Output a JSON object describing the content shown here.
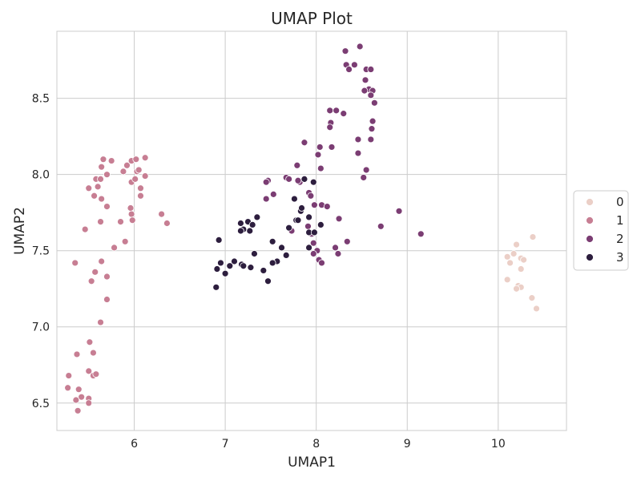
{
  "chart_data": {
    "type": "scatter",
    "title": "UMAP Plot",
    "xlabel": "UMAP1",
    "ylabel": "UMAP2",
    "xlim": [
      5.15,
      10.75
    ],
    "ylim": [
      6.32,
      8.94
    ],
    "xticks": [
      6,
      7,
      8,
      9,
      10
    ],
    "yticks": [
      6.5,
      7.0,
      7.5,
      8.0,
      8.5
    ],
    "grid": true,
    "legend_position": "right",
    "series": [
      {
        "name": "0",
        "color": "#ebcfc7",
        "points": [
          [
            10.38,
            7.59
          ],
          [
            10.2,
            7.54
          ],
          [
            10.1,
            7.46
          ],
          [
            10.17,
            7.48
          ],
          [
            10.25,
            7.45
          ],
          [
            10.28,
            7.44
          ],
          [
            10.13,
            7.42
          ],
          [
            10.25,
            7.38
          ],
          [
            10.1,
            7.31
          ],
          [
            10.22,
            7.27
          ],
          [
            10.25,
            7.26
          ],
          [
            10.2,
            7.25
          ],
          [
            10.37,
            7.19
          ],
          [
            10.42,
            7.12
          ]
        ]
      },
      {
        "name": "1",
        "color": "#c77e93",
        "points": [
          [
            5.66,
            8.1
          ],
          [
            5.75,
            8.09
          ],
          [
            5.97,
            8.09
          ],
          [
            6.02,
            8.1
          ],
          [
            6.12,
            8.11
          ],
          [
            5.58,
            7.97
          ],
          [
            5.63,
            7.97
          ],
          [
            5.7,
            8.0
          ],
          [
            5.88,
            8.02
          ],
          [
            5.92,
            8.06
          ],
          [
            6.03,
            8.02
          ],
          [
            6.05,
            8.03
          ],
          [
            5.64,
            8.05
          ],
          [
            5.97,
            7.95
          ],
          [
            6.01,
            7.97
          ],
          [
            6.12,
            7.99
          ],
          [
            5.5,
            7.91
          ],
          [
            5.6,
            7.92
          ],
          [
            5.56,
            7.86
          ],
          [
            5.64,
            7.84
          ],
          [
            6.07,
            7.91
          ],
          [
            6.07,
            7.86
          ],
          [
            5.7,
            7.79
          ],
          [
            5.96,
            7.78
          ],
          [
            5.97,
            7.74
          ],
          [
            5.98,
            7.7
          ],
          [
            5.63,
            7.69
          ],
          [
            5.85,
            7.69
          ],
          [
            6.3,
            7.74
          ],
          [
            6.36,
            7.68
          ],
          [
            5.46,
            7.64
          ],
          [
            5.9,
            7.56
          ],
          [
            5.78,
            7.52
          ],
          [
            5.35,
            7.42
          ],
          [
            5.64,
            7.43
          ],
          [
            5.57,
            7.36
          ],
          [
            5.7,
            7.33
          ],
          [
            5.53,
            7.3
          ],
          [
            5.7,
            7.18
          ],
          [
            5.63,
            7.03
          ],
          [
            5.51,
            6.9
          ],
          [
            5.37,
            6.82
          ],
          [
            5.55,
            6.83
          ],
          [
            5.28,
            6.68
          ],
          [
            5.5,
            6.71
          ],
          [
            5.55,
            6.68
          ],
          [
            5.58,
            6.69
          ],
          [
            5.39,
            6.59
          ],
          [
            5.27,
            6.6
          ],
          [
            5.42,
            6.54
          ],
          [
            5.5,
            6.53
          ],
          [
            5.36,
            6.52
          ],
          [
            5.5,
            6.5
          ],
          [
            5.38,
            6.45
          ]
        ]
      },
      {
        "name": "2",
        "color": "#7b3d73",
        "points": [
          [
            8.48,
            8.84
          ],
          [
            8.32,
            8.81
          ],
          [
            8.33,
            8.72
          ],
          [
            8.42,
            8.72
          ],
          [
            8.36,
            8.69
          ],
          [
            8.55,
            8.69
          ],
          [
            8.6,
            8.69
          ],
          [
            8.54,
            8.62
          ],
          [
            8.58,
            8.56
          ],
          [
            8.62,
            8.55
          ],
          [
            8.53,
            8.55
          ],
          [
            8.6,
            8.52
          ],
          [
            8.64,
            8.47
          ],
          [
            8.15,
            8.42
          ],
          [
            8.22,
            8.42
          ],
          [
            8.3,
            8.4
          ],
          [
            8.16,
            8.34
          ],
          [
            8.62,
            8.35
          ],
          [
            8.15,
            8.31
          ],
          [
            8.61,
            8.3
          ],
          [
            8.46,
            8.23
          ],
          [
            8.6,
            8.23
          ],
          [
            7.87,
            8.21
          ],
          [
            8.17,
            8.18
          ],
          [
            8.04,
            8.18
          ],
          [
            8.02,
            8.13
          ],
          [
            8.46,
            8.14
          ],
          [
            8.55,
            8.03
          ],
          [
            8.05,
            8.04
          ],
          [
            7.79,
            8.06
          ],
          [
            7.67,
            7.98
          ],
          [
            7.7,
            7.97
          ],
          [
            7.47,
            7.96
          ],
          [
            7.45,
            7.95
          ],
          [
            7.82,
            7.95
          ],
          [
            7.8,
            7.96
          ],
          [
            8.52,
            7.98
          ],
          [
            7.53,
            7.87
          ],
          [
            7.92,
            7.88
          ],
          [
            7.45,
            7.84
          ],
          [
            7.94,
            7.86
          ],
          [
            8.06,
            7.8
          ],
          [
            8.12,
            7.79
          ],
          [
            7.98,
            7.8
          ],
          [
            8.91,
            7.76
          ],
          [
            8.25,
            7.71
          ],
          [
            8.71,
            7.66
          ],
          [
            7.91,
            7.66
          ],
          [
            7.73,
            7.63
          ],
          [
            7.95,
            7.61
          ],
          [
            9.15,
            7.61
          ],
          [
            7.97,
            7.55
          ],
          [
            8.34,
            7.56
          ],
          [
            8.21,
            7.52
          ],
          [
            8.24,
            7.48
          ],
          [
            8.01,
            7.5
          ],
          [
            7.97,
            7.48
          ],
          [
            8.03,
            7.44
          ],
          [
            8.06,
            7.42
          ]
        ]
      },
      {
        "name": "3",
        "color": "#2d1e3e",
        "points": [
          [
            7.87,
            7.97
          ],
          [
            7.97,
            7.95
          ],
          [
            7.76,
            7.84
          ],
          [
            7.83,
            7.76
          ],
          [
            7.84,
            7.78
          ],
          [
            7.92,
            7.72
          ],
          [
            7.35,
            7.72
          ],
          [
            7.25,
            7.69
          ],
          [
            7.17,
            7.68
          ],
          [
            7.78,
            7.7
          ],
          [
            7.8,
            7.7
          ],
          [
            7.3,
            7.67
          ],
          [
            7.2,
            7.64
          ],
          [
            7.17,
            7.63
          ],
          [
            7.27,
            7.63
          ],
          [
            7.7,
            7.65
          ],
          [
            8.05,
            7.67
          ],
          [
            7.92,
            7.62
          ],
          [
            7.98,
            7.62
          ],
          [
            6.93,
            7.57
          ],
          [
            7.52,
            7.56
          ],
          [
            7.62,
            7.52
          ],
          [
            7.92,
            7.52
          ],
          [
            7.32,
            7.48
          ],
          [
            7.67,
            7.47
          ],
          [
            7.57,
            7.43
          ],
          [
            7.52,
            7.42
          ],
          [
            7.1,
            7.43
          ],
          [
            6.95,
            7.42
          ],
          [
            7.18,
            7.41
          ],
          [
            7.05,
            7.4
          ],
          [
            7.2,
            7.4
          ],
          [
            7.28,
            7.39
          ],
          [
            6.91,
            7.38
          ],
          [
            7.42,
            7.37
          ],
          [
            7.0,
            7.35
          ],
          [
            7.47,
            7.3
          ],
          [
            6.9,
            7.26
          ]
        ]
      }
    ]
  }
}
